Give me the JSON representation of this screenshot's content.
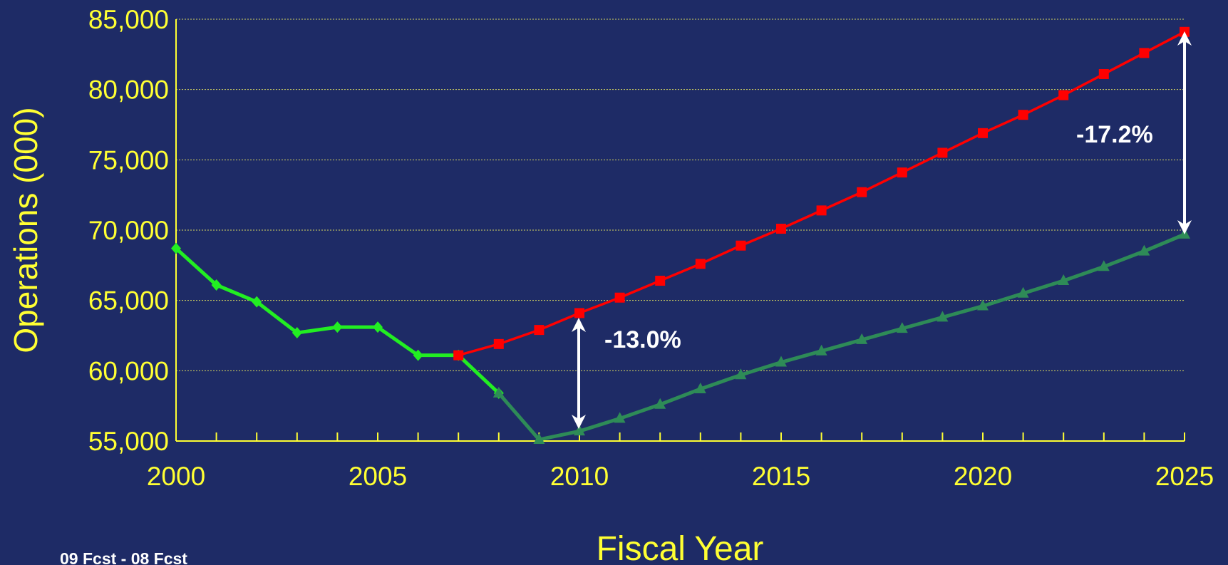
{
  "chart_data": {
    "type": "line",
    "x": [
      2000,
      2001,
      2002,
      2003,
      2004,
      2005,
      2006,
      2007,
      2008,
      2009,
      2010,
      2011,
      2012,
      2013,
      2014,
      2015,
      2016,
      2017,
      2018,
      2019,
      2020,
      2021,
      2022,
      2023,
      2024,
      2025
    ],
    "series": [
      {
        "color": "#22ee22",
        "marker": "diamond",
        "values": [
          68700,
          66100,
          64900,
          62700,
          63100,
          63100,
          61100,
          61100,
          58400,
          null,
          null,
          null,
          null,
          null,
          null,
          null,
          null,
          null,
          null,
          null,
          null,
          null,
          null,
          null,
          null,
          null
        ]
      },
      {
        "color": "#ff0000",
        "marker": "square",
        "values": [
          null,
          null,
          null,
          null,
          null,
          null,
          null,
          61100,
          61900,
          62900,
          64100,
          65200,
          66400,
          67600,
          68900,
          70100,
          71400,
          72700,
          74100,
          75500,
          76900,
          78200,
          79600,
          81100,
          82600,
          84100
        ]
      },
      {
        "color": "#2e8b57",
        "marker": "triangle",
        "values": [
          null,
          null,
          null,
          null,
          null,
          null,
          null,
          null,
          58400,
          55100,
          55700,
          56600,
          57600,
          58700,
          59700,
          60600,
          61400,
          62200,
          63000,
          63800,
          64600,
          65500,
          66400,
          67400,
          68500,
          69700
        ]
      }
    ],
    "xlim": [
      2000,
      2025
    ],
    "xticks": [
      2000,
      2005,
      2010,
      2015,
      2020,
      2025
    ],
    "ylim": [
      55000,
      85000
    ],
    "yticks": [
      {
        "value": 55000,
        "label": "55,000"
      },
      {
        "value": 60000,
        "label": "60,000"
      },
      {
        "value": 65000,
        "label": "65,000"
      },
      {
        "value": 70000,
        "label": "70,000"
      },
      {
        "value": 75000,
        "label": "75,000"
      },
      {
        "value": 80000,
        "label": "80,000"
      },
      {
        "value": 85000,
        "label": "85,000"
      }
    ],
    "x_label": "Fiscal Year",
    "y_label": "Operations (000)",
    "annotations": [
      "-13.0%",
      "-17.2%"
    ],
    "footnote": "09 Fcst - 08 Fcst",
    "grid": true
  }
}
